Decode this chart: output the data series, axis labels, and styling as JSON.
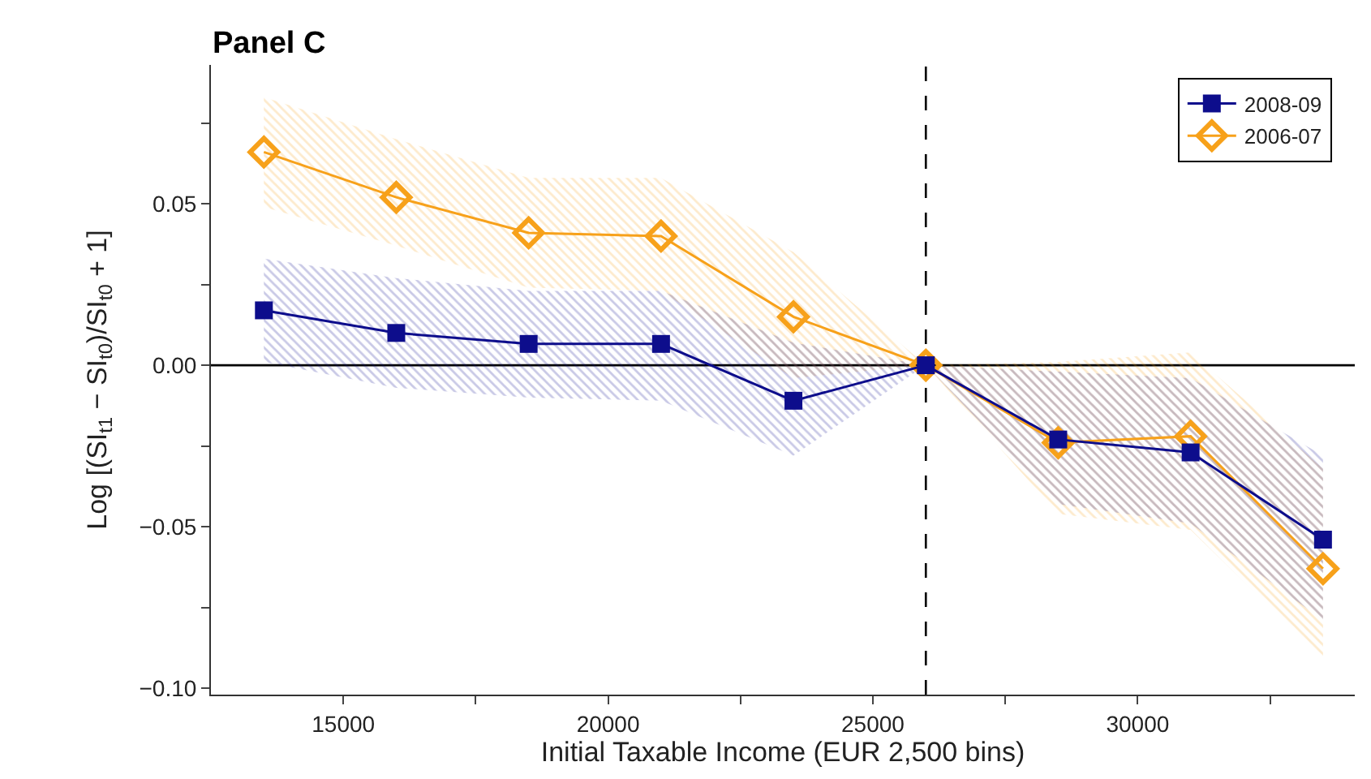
{
  "chart_data": {
    "type": "line",
    "title": "Panel C",
    "xlabel": "Initial Taxable Income (EUR 2,500 bins)",
    "ylabel": "Log [(SI$_{t1}$ − SI$_{t0}$)/SI$_{t0}$ + 1]",
    "x": [
      13500,
      16000,
      18500,
      21000,
      23500,
      26000,
      28500,
      31000,
      33500
    ],
    "series": [
      {
        "name": "2006-07",
        "color": "#f7a11a",
        "marker": "diamond",
        "values": [
          0.066,
          0.052,
          0.041,
          0.04,
          0.015,
          0.0,
          -0.024,
          -0.022,
          -0.063
        ],
        "lower": [
          0.049,
          0.037,
          0.024,
          0.023,
          -0.004,
          0.0,
          -0.046,
          -0.051,
          -0.091
        ],
        "upper": [
          0.083,
          0.07,
          0.058,
          0.058,
          0.035,
          0.0,
          0.001,
          0.004,
          -0.032
        ]
      },
      {
        "name": "2008-09",
        "color": "#0d0d8c",
        "marker": "square",
        "values": [
          0.017,
          0.01,
          0.0066,
          0.0066,
          -0.011,
          0.0,
          -0.023,
          -0.027,
          -0.054
        ],
        "lower": [
          0.001,
          -0.007,
          -0.01,
          -0.011,
          -0.028,
          0.0,
          -0.043,
          -0.049,
          -0.079
        ],
        "upper": [
          0.033,
          0.027,
          0.023,
          0.023,
          0.007,
          0.0,
          -0.002,
          -0.004,
          -0.028
        ]
      }
    ],
    "xlim": [
      12500,
      34100
    ],
    "xticks": [
      15000,
      {
        "value": 17500,
        "label": null
      },
      20000,
      {
        "value": 22500,
        "label": null
      },
      25000,
      {
        "value": 27500,
        "label": null
      },
      30000,
      {
        "value": 32500,
        "label": null
      }
    ],
    "ylim": [
      -0.102,
      0.093
    ],
    "yticks": [
      {
        "value": -0.1,
        "label": "−0.10"
      },
      {
        "value": -0.075,
        "label": null
      },
      {
        "value": -0.05,
        "label": "−0.05"
      },
      {
        "value": -0.025,
        "label": null
      },
      {
        "value": 0,
        "label": "0.00"
      },
      {
        "value": 0.025,
        "label": null
      },
      {
        "value": 0.05,
        "label": "0.05"
      },
      {
        "value": 0.075,
        "label": null
      }
    ],
    "ref_lines": [
      {
        "axis": "y",
        "value": 0,
        "color": "#000000",
        "line_style": "solid"
      },
      {
        "axis": "x",
        "value": 26000,
        "color": "#000000",
        "line_style": "dashed"
      }
    ],
    "grid": false,
    "legend": "top right",
    "line_style": "solid"
  }
}
